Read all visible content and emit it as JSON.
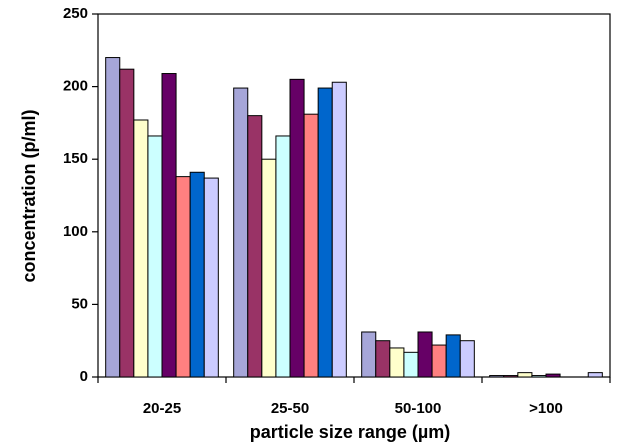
{
  "chart_data": {
    "type": "bar",
    "xlabel": "particle size range (µm)",
    "ylabel": "concentration (p/ml)",
    "categories": [
      "20-25",
      "25-50",
      "50-100",
      ">100"
    ],
    "series": [
      {
        "color": "#a6a6d8",
        "values": [
          220,
          199,
          31,
          1
        ]
      },
      {
        "color": "#993366",
        "values": [
          212,
          180,
          25,
          1
        ]
      },
      {
        "color": "#ffffcc",
        "values": [
          177,
          150,
          20,
          3
        ]
      },
      {
        "color": "#ccffff",
        "values": [
          166,
          166,
          17,
          1
        ]
      },
      {
        "color": "#660066",
        "values": [
          209,
          205,
          31,
          2
        ]
      },
      {
        "color": "#ff8080",
        "values": [
          138,
          181,
          22,
          0
        ]
      },
      {
        "color": "#0066cc",
        "values": [
          141,
          199,
          29,
          0
        ]
      },
      {
        "color": "#ccccff",
        "values": [
          137,
          203,
          25,
          3
        ]
      }
    ],
    "ylim": [
      0,
      250
    ],
    "yticks": [
      0,
      50,
      100,
      150,
      200,
      250
    ]
  }
}
